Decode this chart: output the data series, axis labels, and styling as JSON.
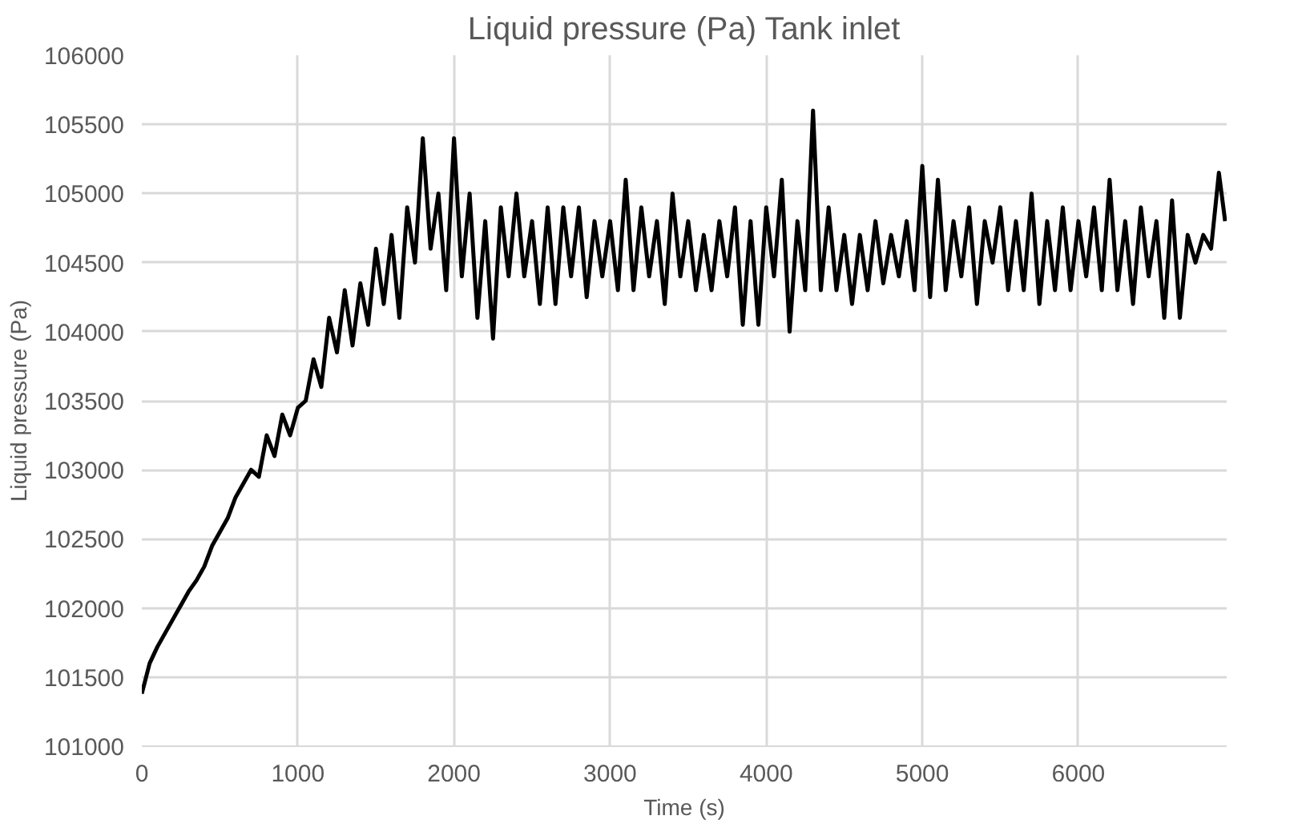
{
  "chart_data": {
    "type": "line",
    "title": "Liquid pressure (Pa) Tank inlet",
    "xlabel": "Time (s)",
    "ylabel": "Liquid pressure (Pa)",
    "x": [
      0,
      50,
      100,
      150,
      200,
      250,
      300,
      350,
      400,
      450,
      500,
      550,
      600,
      650,
      700,
      750,
      800,
      850,
      900,
      950,
      1000,
      1050,
      1100,
      1150,
      1200,
      1250,
      1300,
      1350,
      1400,
      1450,
      1500,
      1550,
      1600,
      1650,
      1700,
      1750,
      1800,
      1850,
      1900,
      1950,
      2000,
      2050,
      2100,
      2150,
      2200,
      2250,
      2300,
      2350,
      2400,
      2450,
      2500,
      2550,
      2600,
      2650,
      2700,
      2750,
      2800,
      2850,
      2900,
      2950,
      3000,
      3050,
      3100,
      3150,
      3200,
      3250,
      3300,
      3350,
      3400,
      3450,
      3500,
      3550,
      3600,
      3650,
      3700,
      3750,
      3800,
      3850,
      3900,
      3950,
      4000,
      4050,
      4100,
      4150,
      4200,
      4250,
      4300,
      4350,
      4400,
      4450,
      4500,
      4550,
      4600,
      4650,
      4700,
      4750,
      4800,
      4850,
      4900,
      4950,
      5000,
      5050,
      5100,
      5150,
      5200,
      5250,
      5300,
      5350,
      5400,
      5450,
      5500,
      5550,
      5600,
      5650,
      5700,
      5750,
      5800,
      5850,
      5900,
      5950,
      6000,
      6050,
      6100,
      6150,
      6200,
      6250,
      6300,
      6350,
      6400,
      6450,
      6500,
      6550,
      6600,
      6650,
      6700,
      6750,
      6800,
      6850,
      6900,
      6940
    ],
    "series": [
      {
        "color": "#000000",
        "values": [
          101380,
          101600,
          101720,
          101820,
          101920,
          102020,
          102120,
          102200,
          102300,
          102450,
          102550,
          102650,
          102800,
          102900,
          103000,
          102950,
          103250,
          103100,
          103400,
          103250,
          103450,
          103500,
          103800,
          103600,
          104100,
          103850,
          104300,
          103900,
          104350,
          104050,
          104600,
          104200,
          104700,
          104100,
          104900,
          104500,
          105400,
          104600,
          105000,
          104300,
          105400,
          104400,
          105000,
          104100,
          104800,
          103950,
          104900,
          104400,
          105000,
          104400,
          104800,
          104200,
          104900,
          104200,
          104900,
          104400,
          104900,
          104250,
          104800,
          104400,
          104800,
          104300,
          105100,
          104300,
          104900,
          104400,
          104800,
          104200,
          105000,
          104400,
          104800,
          104300,
          104700,
          104300,
          104800,
          104400,
          104900,
          104050,
          104800,
          104050,
          104900,
          104400,
          105100,
          104000,
          104800,
          104300,
          105600,
          104300,
          104900,
          104300,
          104700,
          104200,
          104700,
          104300,
          104800,
          104350,
          104700,
          104400,
          104800,
          104300,
          105200,
          104250,
          105100,
          104300,
          104800,
          104400,
          104900,
          104200,
          104800,
          104500,
          104900,
          104300,
          104800,
          104300,
          105000,
          104200,
          104800,
          104300,
          104900,
          104300,
          104800,
          104400,
          104900,
          104300,
          105100,
          104300,
          104800,
          104200,
          104900,
          104400,
          104800,
          104100,
          104950,
          104100,
          104700,
          104500,
          104700,
          104600,
          105150,
          104800
        ]
      }
    ],
    "xlim": [
      0,
      6950
    ],
    "ylim": [
      101000,
      106000
    ],
    "xticks": [
      0,
      1000,
      2000,
      3000,
      4000,
      5000,
      6000
    ],
    "yticks": [
      101000,
      101500,
      102000,
      102500,
      103000,
      103500,
      104000,
      104500,
      105000,
      105500,
      106000
    ],
    "grid": true,
    "line_style": "solid",
    "marker": "none"
  }
}
